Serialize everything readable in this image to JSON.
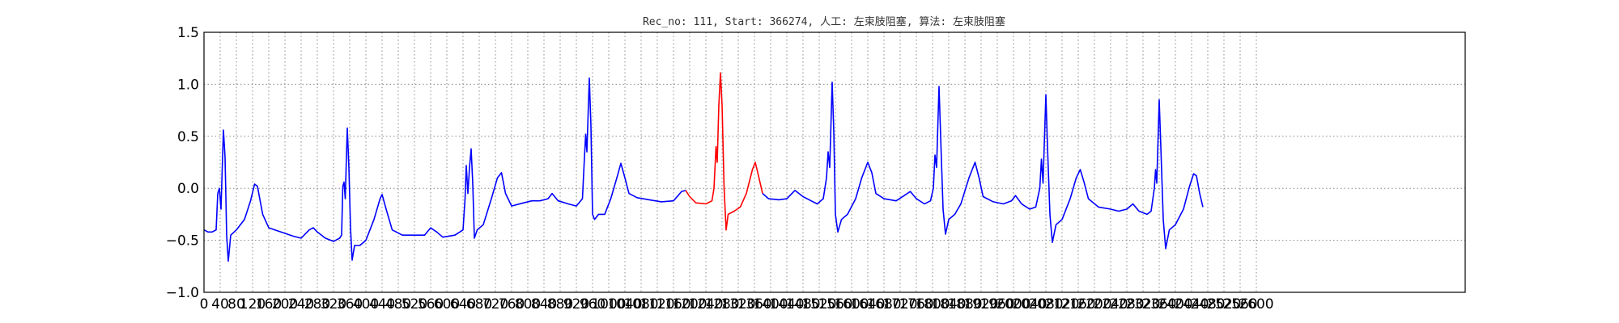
{
  "chart_data": {
    "type": "line",
    "title": "Rec_no: 111, Start: 366274, 人工: 左束肢阻塞, 算法: 左束肢阻塞",
    "xlabel": "",
    "ylabel": "",
    "xlim": [
      0,
      3000
    ],
    "ylim": [
      -1.0,
      1.5
    ],
    "grid": true,
    "y_ticks": [
      "1.5",
      "1.0",
      "0.5",
      "0.0",
      "−0.5",
      "−1.0"
    ],
    "x_ticks": [
      "0",
      "40",
      "80",
      "120",
      "160",
      "200",
      "240",
      "280",
      "320",
      "360",
      "400",
      "440",
      "480",
      "520",
      "560",
      "600",
      "640",
      "680",
      "720",
      "760",
      "800",
      "840",
      "880",
      "920",
      "960",
      "1000",
      "1040",
      "1080",
      "1120",
      "1160",
      "1200",
      "1240",
      "1280",
      "1320",
      "1360",
      "1400",
      "1440",
      "1480",
      "1520",
      "1560",
      "1600",
      "1640",
      "1680",
      "1720",
      "1760",
      "1800",
      "1840",
      "1880",
      "1920",
      "1960",
      "2000",
      "2040",
      "2080",
      "2120",
      "2160",
      "2200",
      "2240",
      "2280",
      "2320",
      "2360",
      "2400",
      "2440",
      "2480",
      "2520",
      "2560",
      "2600"
    ],
    "baseline_points": [
      [
        0,
        -0.4
      ],
      [
        10,
        -0.42
      ],
      [
        20,
        -0.42
      ],
      [
        30,
        -0.4
      ],
      [
        34,
        -0.05
      ],
      [
        38,
        0.0
      ],
      [
        42,
        -0.2
      ],
      [
        48,
        0.56
      ],
      [
        52,
        0.3
      ],
      [
        56,
        -0.45
      ],
      [
        60,
        -0.7
      ],
      [
        66,
        -0.45
      ],
      [
        80,
        -0.4
      ],
      [
        100,
        -0.3
      ],
      [
        115,
        -0.12
      ],
      [
        125,
        0.04
      ],
      [
        132,
        0.02
      ],
      [
        145,
        -0.25
      ],
      [
        160,
        -0.38
      ],
      [
        190,
        -0.42
      ],
      [
        220,
        -0.46
      ],
      [
        240,
        -0.48
      ],
      [
        260,
        -0.4
      ],
      [
        270,
        -0.38
      ],
      [
        280,
        -0.42
      ],
      [
        300,
        -0.48
      ],
      [
        320,
        -0.51
      ],
      [
        335,
        -0.48
      ],
      [
        340,
        -0.45
      ],
      [
        343,
        0.02
      ],
      [
        346,
        0.06
      ],
      [
        349,
        -0.1
      ],
      [
        354,
        0.58
      ],
      [
        358,
        0.2
      ],
      [
        362,
        -0.38
      ],
      [
        366,
        -0.69
      ],
      [
        372,
        -0.55
      ],
      [
        385,
        -0.55
      ],
      [
        400,
        -0.5
      ],
      [
        420,
        -0.3
      ],
      [
        435,
        -0.1
      ],
      [
        440,
        -0.06
      ],
      [
        450,
        -0.2
      ],
      [
        465,
        -0.4
      ],
      [
        490,
        -0.45
      ],
      [
        520,
        -0.45
      ],
      [
        545,
        -0.45
      ],
      [
        560,
        -0.38
      ],
      [
        575,
        -0.42
      ],
      [
        590,
        -0.47
      ],
      [
        620,
        -0.45
      ],
      [
        640,
        -0.4
      ],
      [
        645,
        -0.1
      ],
      [
        648,
        0.22
      ],
      [
        652,
        -0.05
      ],
      [
        656,
        0.2
      ],
      [
        660,
        0.38
      ],
      [
        664,
        0.05
      ],
      [
        668,
        -0.48
      ],
      [
        675,
        -0.4
      ],
      [
        690,
        -0.35
      ],
      [
        710,
        -0.1
      ],
      [
        725,
        0.1
      ],
      [
        735,
        0.15
      ],
      [
        745,
        -0.05
      ],
      [
        760,
        -0.17
      ],
      [
        790,
        -0.14
      ],
      [
        810,
        -0.12
      ],
      [
        830,
        -0.12
      ],
      [
        850,
        -0.1
      ],
      [
        860,
        -0.05
      ],
      [
        875,
        -0.12
      ],
      [
        900,
        -0.15
      ],
      [
        920,
        -0.17
      ],
      [
        935,
        -0.1
      ],
      [
        940,
        0.3
      ],
      [
        943,
        0.52
      ],
      [
        946,
        0.35
      ],
      [
        952,
        1.06
      ],
      [
        956,
        0.6
      ],
      [
        960,
        -0.25
      ],
      [
        965,
        -0.3
      ],
      [
        975,
        -0.25
      ],
      [
        990,
        -0.25
      ],
      [
        1005,
        -0.1
      ],
      [
        1020,
        0.1
      ],
      [
        1030,
        0.24
      ],
      [
        1040,
        0.1
      ],
      [
        1050,
        -0.05
      ],
      [
        1070,
        -0.09
      ],
      [
        1100,
        -0.11
      ],
      [
        1130,
        -0.13
      ],
      [
        1160,
        -0.12
      ],
      [
        1180,
        -0.03
      ],
      [
        1190,
        -0.02
      ]
    ],
    "highlight_points": [
      [
        1190,
        -0.02
      ],
      [
        1200,
        -0.08
      ],
      [
        1215,
        -0.14
      ],
      [
        1240,
        -0.15
      ],
      [
        1255,
        -0.12
      ],
      [
        1260,
        0.0
      ],
      [
        1265,
        0.4
      ],
      [
        1268,
        0.25
      ],
      [
        1272,
        0.8
      ],
      [
        1276,
        1.11
      ],
      [
        1280,
        0.8
      ],
      [
        1285,
        0.0
      ],
      [
        1290,
        -0.4
      ],
      [
        1295,
        -0.25
      ],
      [
        1310,
        -0.22
      ],
      [
        1325,
        -0.18
      ],
      [
        1340,
        -0.05
      ],
      [
        1355,
        0.18
      ],
      [
        1362,
        0.25
      ],
      [
        1370,
        0.12
      ],
      [
        1380,
        -0.05
      ]
    ],
    "baseline_points_2": [
      [
        1380,
        -0.05
      ],
      [
        1395,
        -0.1
      ],
      [
        1420,
        -0.11
      ],
      [
        1440,
        -0.1
      ],
      [
        1460,
        -0.02
      ],
      [
        1480,
        -0.08
      ],
      [
        1500,
        -0.12
      ],
      [
        1515,
        -0.15
      ],
      [
        1530,
        -0.1
      ],
      [
        1538,
        0.1
      ],
      [
        1542,
        0.35
      ],
      [
        1546,
        0.2
      ],
      [
        1552,
        1.02
      ],
      [
        1556,
        0.55
      ],
      [
        1560,
        -0.25
      ],
      [
        1566,
        -0.42
      ],
      [
        1575,
        -0.3
      ],
      [
        1590,
        -0.25
      ],
      [
        1610,
        -0.1
      ],
      [
        1625,
        0.1
      ],
      [
        1640,
        0.25
      ],
      [
        1650,
        0.15
      ],
      [
        1660,
        -0.05
      ],
      [
        1680,
        -0.1
      ],
      [
        1710,
        -0.12
      ],
      [
        1730,
        -0.07
      ],
      [
        1745,
        -0.03
      ],
      [
        1760,
        -0.1
      ],
      [
        1780,
        -0.15
      ],
      [
        1795,
        -0.12
      ],
      [
        1802,
        0.0
      ],
      [
        1806,
        0.32
      ],
      [
        1810,
        0.2
      ],
      [
        1816,
        0.98
      ],
      [
        1820,
        0.5
      ],
      [
        1826,
        -0.2
      ],
      [
        1832,
        -0.44
      ],
      [
        1840,
        -0.3
      ],
      [
        1855,
        -0.25
      ],
      [
        1870,
        -0.15
      ],
      [
        1890,
        0.1
      ],
      [
        1905,
        0.25
      ],
      [
        1915,
        0.1
      ],
      [
        1925,
        -0.08
      ],
      [
        1950,
        -0.13
      ],
      [
        1975,
        -0.15
      ],
      [
        1995,
        -0.12
      ],
      [
        2005,
        -0.07
      ],
      [
        2020,
        -0.15
      ],
      [
        2040,
        -0.2
      ],
      [
        2055,
        -0.18
      ],
      [
        2065,
        0.0
      ],
      [
        2069,
        0.28
      ],
      [
        2073,
        0.05
      ],
      [
        2080,
        0.9
      ],
      [
        2084,
        0.4
      ],
      [
        2090,
        -0.25
      ],
      [
        2096,
        -0.52
      ],
      [
        2105,
        -0.35
      ],
      [
        2120,
        -0.3
      ],
      [
        2140,
        -0.1
      ],
      [
        2155,
        0.1
      ],
      [
        2165,
        0.18
      ],
      [
        2175,
        0.05
      ],
      [
        2185,
        -0.1
      ],
      [
        2210,
        -0.18
      ],
      [
        2240,
        -0.2
      ],
      [
        2260,
        -0.22
      ],
      [
        2280,
        -0.2
      ],
      [
        2295,
        -0.15
      ],
      [
        2310,
        -0.22
      ],
      [
        2330,
        -0.25
      ],
      [
        2340,
        -0.22
      ],
      [
        2348,
        0.0
      ],
      [
        2351,
        0.18
      ],
      [
        2354,
        0.05
      ],
      [
        2360,
        0.85
      ],
      [
        2364,
        0.4
      ],
      [
        2370,
        -0.3
      ],
      [
        2376,
        -0.58
      ],
      [
        2385,
        -0.4
      ],
      [
        2400,
        -0.35
      ],
      [
        2420,
        -0.2
      ],
      [
        2435,
        0.02
      ],
      [
        2445,
        0.14
      ],
      [
        2452,
        0.12
      ],
      [
        2460,
        -0.05
      ],
      [
        2468,
        -0.18
      ]
    ],
    "colors": {
      "baseline": "#0000ff",
      "highlight": "#ff0000",
      "grid": "#888888",
      "axes": "#000000"
    }
  }
}
